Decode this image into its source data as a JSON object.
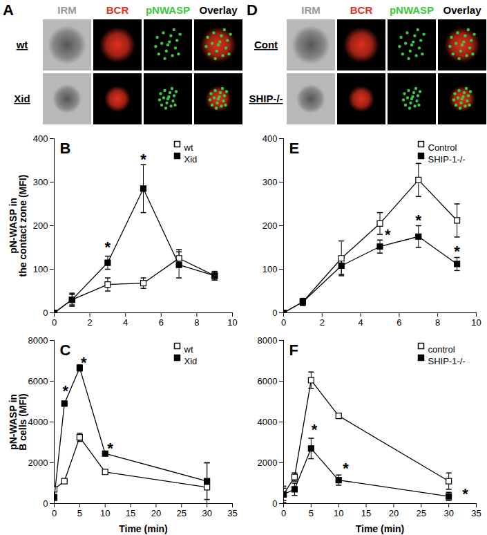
{
  "image_panels": [
    {
      "label": "A",
      "columns": [
        {
          "text": "IRM",
          "color": "#999999"
        },
        {
          "text": "BCR",
          "color": "#e0301e"
        },
        {
          "text": "pNWASP",
          "color": "#3cc83c"
        },
        {
          "text": "Overlay",
          "color": "#000000"
        }
      ],
      "rows": [
        "wt",
        "Xid"
      ]
    },
    {
      "label": "D",
      "columns": [
        {
          "text": "IRM",
          "color": "#999999"
        },
        {
          "text": "BCR",
          "color": "#e0301e"
        },
        {
          "text": "pNWASP",
          "color": "#3cc83c"
        },
        {
          "text": "Overlay",
          "color": "#000000"
        }
      ],
      "rows": [
        "Cont",
        "SHIP-/-"
      ]
    }
  ],
  "chart_data": [
    {
      "type": "line",
      "title": "B",
      "y_label": "pN-WASP in\nthe contact zone (MFI)",
      "x": [
        0,
        1,
        3,
        5,
        7,
        9
      ],
      "xlim": [
        0,
        10
      ],
      "xticks": [
        0,
        2,
        4,
        6,
        8,
        10
      ],
      "ylim": [
        0,
        400
      ],
      "yticks": [
        0,
        100,
        200,
        300,
        400
      ],
      "legend": "top-right",
      "series": [
        {
          "name": "wt",
          "color": "#000000",
          "marker": "square-open",
          "values": [
            0,
            30,
            65,
            68,
            125,
            85
          ],
          "errors": [
            0,
            12,
            15,
            12,
            20,
            10
          ]
        },
        {
          "name": "Xid",
          "color": "#000000",
          "marker": "square",
          "values": [
            0,
            30,
            115,
            285,
            110,
            85
          ],
          "errors": [
            0,
            15,
            15,
            55,
            30,
            10
          ]
        }
      ],
      "annotations": [
        {
          "text": "*",
          "x": 3,
          "y": 150
        },
        {
          "text": "*",
          "x": 5,
          "y": 352
        }
      ]
    },
    {
      "type": "line",
      "title": "C",
      "y_label": "pN-WASP in\nB cells (MFI)",
      "x_label": "Time (min)",
      "x": [
        0,
        2,
        5,
        10,
        30
      ],
      "xlim": [
        0,
        35
      ],
      "xticks": [
        0,
        5,
        10,
        15,
        20,
        25,
        30,
        35
      ],
      "ylim": [
        0,
        8000
      ],
      "yticks": [
        0,
        2000,
        4000,
        6000,
        8000
      ],
      "legend": "top-right",
      "series": [
        {
          "name": "wt",
          "color": "#000000",
          "marker": "square-open",
          "values": [
            700,
            1100,
            3250,
            1550,
            800
          ],
          "errors": [
            0,
            100,
            200,
            100,
            1200
          ]
        },
        {
          "name": "Xid",
          "color": "#000000",
          "marker": "square",
          "values": [
            300,
            4900,
            6650,
            2450,
            1100
          ],
          "errors": [
            150,
            100,
            150,
            100,
            900
          ]
        }
      ],
      "annotations": [
        {
          "text": "*",
          "x": 2.2,
          "y": 5500
        },
        {
          "text": "*",
          "x": 5.8,
          "y": 6900
        },
        {
          "text": "*",
          "x": 11,
          "y": 2700
        }
      ]
    },
    {
      "type": "line",
      "title": "E",
      "x": [
        0,
        1,
        3,
        5,
        7,
        9
      ],
      "xlim": [
        0,
        10
      ],
      "xticks": [
        0,
        2,
        4,
        6,
        8,
        10
      ],
      "ylim": [
        0,
        400
      ],
      "yticks": [
        0,
        100,
        200,
        300,
        400
      ],
      "legend": "top-right",
      "series": [
        {
          "name": "Control",
          "color": "#000000",
          "marker": "square-open",
          "values": [
            0,
            25,
            125,
            205,
            305,
            212
          ],
          "errors": [
            0,
            8,
            40,
            25,
            38,
            38
          ]
        },
        {
          "name": "SHIP-1-/-",
          "color": "#000000",
          "marker": "square",
          "values": [
            0,
            25,
            108,
            152,
            175,
            112
          ],
          "errors": [
            0,
            8,
            20,
            15,
            25,
            15
          ]
        }
      ],
      "annotations": [
        {
          "text": "*",
          "x": 5.4,
          "y": 178
        },
        {
          "text": "*",
          "x": 7,
          "y": 212
        },
        {
          "text": "*",
          "x": 9,
          "y": 140
        }
      ]
    },
    {
      "type": "line",
      "title": "F",
      "x_label": "Time (min)",
      "x": [
        0,
        2,
        5,
        10,
        30
      ],
      "xlim": [
        0,
        35
      ],
      "xticks": [
        0,
        5,
        10,
        15,
        20,
        25,
        30,
        35
      ],
      "ylim": [
        0,
        8000
      ],
      "yticks": [
        0,
        2000,
        4000,
        6000,
        8000
      ],
      "legend": "top-right",
      "series": [
        {
          "name": "control",
          "color": "#000000",
          "marker": "square-open",
          "values": [
            450,
            1300,
            6050,
            4300,
            1100
          ],
          "errors": [
            300,
            200,
            400,
            100,
            400
          ]
        },
        {
          "name": "SHIP-1-/-",
          "color": "#000000",
          "marker": "square",
          "values": [
            450,
            700,
            2700,
            1150,
            350
          ],
          "errors": [
            400,
            300,
            500,
            250,
            200
          ]
        }
      ],
      "annotations": [
        {
          "text": "*",
          "x": 5.6,
          "y": 3600
        },
        {
          "text": "*",
          "x": 11.3,
          "y": 1700
        },
        {
          "text": "*",
          "x": 33,
          "y": 450
        }
      ]
    }
  ]
}
